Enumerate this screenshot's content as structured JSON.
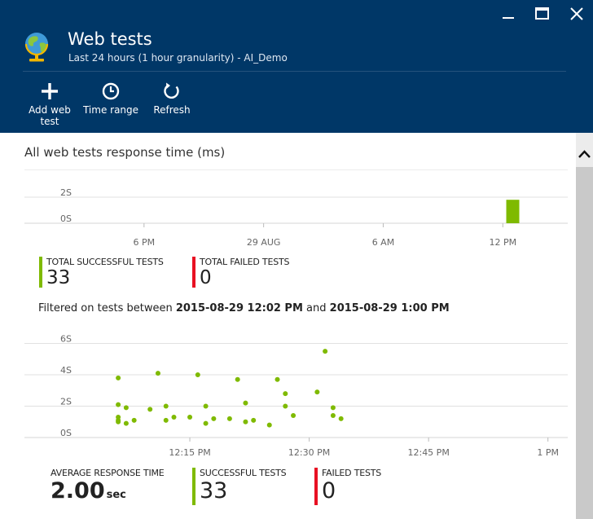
{
  "header": {
    "title": "Web tests",
    "subtitle": "Last 24 hours (1 hour granularity) - AI_Demo",
    "window_buttons": [
      "minimize-icon",
      "maximize-icon",
      "close-icon"
    ],
    "commands": [
      {
        "label": "Add web test",
        "icon": "plus-icon"
      },
      {
        "label": "Time range",
        "icon": "clock-icon"
      },
      {
        "label": "Refresh",
        "icon": "refresh-icon"
      }
    ],
    "colors": {
      "background": "#003767"
    }
  },
  "content": {
    "section_title": "All web tests response time (ms)",
    "summary_tiles": [
      {
        "label": "TOTAL SUCCESSFUL TESTS",
        "value": "33",
        "color": "#7fba00"
      },
      {
        "label": "TOTAL FAILED TESTS",
        "value": "0",
        "color": "#e81123"
      }
    ],
    "filter": {
      "prefix": "Filtered on tests between",
      "start": "2015-08-29 12:02 PM",
      "conjunction": "and",
      "end": "2015-08-29 1:00 PM"
    },
    "average": {
      "label": "AVERAGE RESPONSE TIME",
      "value": "2.00",
      "unit": "sec"
    },
    "detail_tiles": [
      {
        "label": "SUCCESSFUL TESTS",
        "value": "33",
        "color": "#7fba00"
      },
      {
        "label": "FAILED TESTS",
        "value": "0",
        "color": "#e81123"
      }
    ]
  },
  "chart_data": [
    {
      "type": "bar",
      "y_ticks": [
        "2S",
        "0S"
      ],
      "x_ticks": [
        "6 PM",
        "29 AUG",
        "6 AM",
        "12 PM"
      ],
      "x_ticks_hours": [
        6,
        12,
        18,
        24
      ],
      "ylim": [
        0,
        2.5
      ],
      "bars": [
        {
          "hour": 24.5,
          "value": 1.8
        }
      ],
      "bar_color": "#7fba00",
      "grid": true
    },
    {
      "type": "scatter",
      "y_ticks": [
        "6S",
        "4S",
        "2S",
        "0S"
      ],
      "y_tick_values": [
        6,
        4,
        2,
        0
      ],
      "x_ticks": [
        "12:15 PM",
        "12:30 PM",
        "12:45 PM",
        "1 PM"
      ],
      "x_tick_minutes": [
        15,
        30,
        45,
        60
      ],
      "ylim": [
        0,
        7
      ],
      "point_color": "#7fba00",
      "grid": true,
      "points": [
        {
          "minute": 6,
          "value": 3.8
        },
        {
          "minute": 6,
          "value": 2.1
        },
        {
          "minute": 6,
          "value": 1.3
        },
        {
          "minute": 6,
          "value": 1.1
        },
        {
          "minute": 6,
          "value": 1.0
        },
        {
          "minute": 7,
          "value": 1.9
        },
        {
          "minute": 7,
          "value": 0.9
        },
        {
          "minute": 8,
          "value": 1.1
        },
        {
          "minute": 10,
          "value": 1.8
        },
        {
          "minute": 11,
          "value": 4.1
        },
        {
          "minute": 12,
          "value": 2.0
        },
        {
          "minute": 12,
          "value": 1.1
        },
        {
          "minute": 13,
          "value": 1.3
        },
        {
          "minute": 15,
          "value": 1.3
        },
        {
          "minute": 16,
          "value": 4.0
        },
        {
          "minute": 17,
          "value": 2.0
        },
        {
          "minute": 17,
          "value": 0.9
        },
        {
          "minute": 18,
          "value": 1.2
        },
        {
          "minute": 20,
          "value": 1.2
        },
        {
          "minute": 21,
          "value": 3.7
        },
        {
          "minute": 22,
          "value": 2.2
        },
        {
          "minute": 22,
          "value": 1.0
        },
        {
          "minute": 23,
          "value": 1.1
        },
        {
          "minute": 25,
          "value": 0.8
        },
        {
          "minute": 26,
          "value": 3.7
        },
        {
          "minute": 27,
          "value": 2.8
        },
        {
          "minute": 27,
          "value": 2.0
        },
        {
          "minute": 28,
          "value": 1.4
        },
        {
          "minute": 31,
          "value": 2.9
        },
        {
          "minute": 32,
          "value": 5.5
        },
        {
          "minute": 33,
          "value": 1.9
        },
        {
          "minute": 33,
          "value": 1.4
        },
        {
          "minute": 34,
          "value": 1.2
        }
      ]
    }
  ],
  "scrollbar": {
    "up_icon": "chevron-up-icon"
  }
}
